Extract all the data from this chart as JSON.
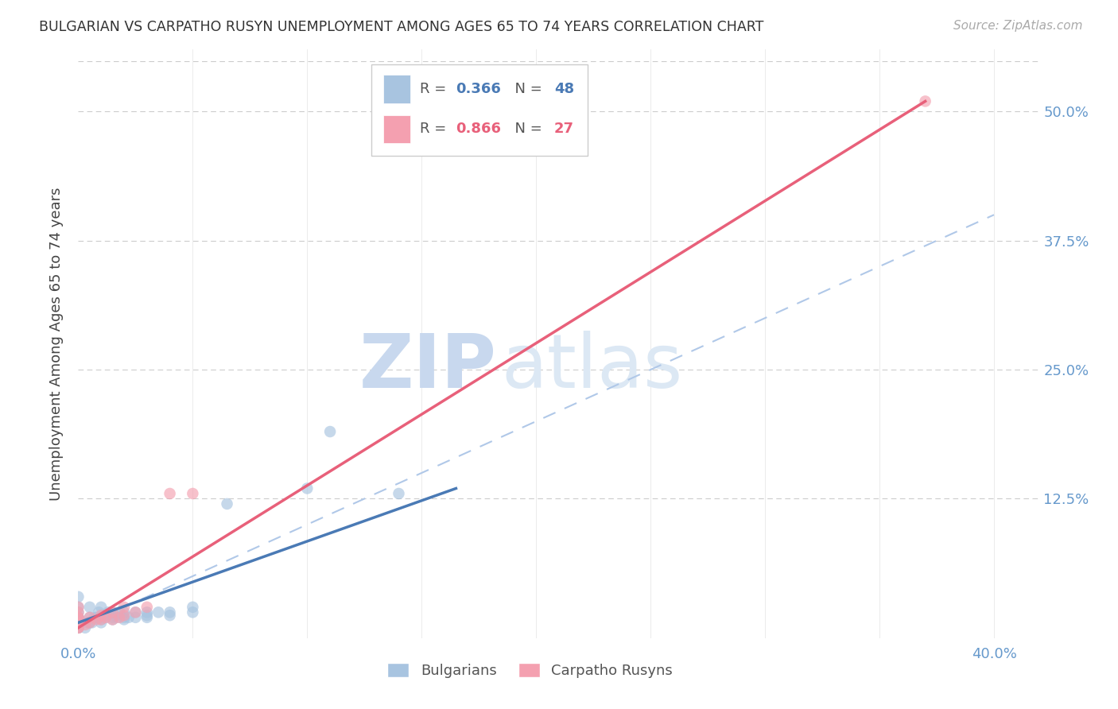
{
  "title": "BULGARIAN VS CARPATHO RUSYN UNEMPLOYMENT AMONG AGES 65 TO 74 YEARS CORRELATION CHART",
  "source": "Source: ZipAtlas.com",
  "ylabel": "Unemployment Among Ages 65 to 74 years",
  "xlim": [
    0.0,
    0.42
  ],
  "ylim": [
    -0.01,
    0.56
  ],
  "x_ticks": [
    0.0,
    0.05,
    0.1,
    0.15,
    0.2,
    0.25,
    0.3,
    0.35,
    0.4
  ],
  "y_ticks": [
    0.0,
    0.125,
    0.25,
    0.375,
    0.5
  ],
  "bulgarians_color": "#a8c4e0",
  "carpatho_color": "#f4a0b0",
  "bulgarian_line_color": "#4a7ab5",
  "carpatho_line_color": "#e8607a",
  "diagonal_color": "#b0c8e8",
  "legend_bulgarian_R": "0.366",
  "legend_bulgarian_N": "48",
  "legend_carpatho_R": "0.866",
  "legend_carpatho_N": "27",
  "watermark_zip": "ZIP",
  "watermark_atlas": "atlas",
  "watermark_color": "#c8d8ee",
  "background_color": "#ffffff",
  "bulgarian_line": [
    [
      0.0,
      0.005
    ],
    [
      0.165,
      0.135
    ]
  ],
  "carpatho_line": [
    [
      0.0,
      0.0
    ],
    [
      0.37,
      0.51
    ]
  ],
  "diagonal_line": [
    [
      0.0,
      0.0
    ],
    [
      0.4,
      0.4
    ]
  ],
  "bulgarians_x": [
    0.0,
    0.0,
    0.0,
    0.0,
    0.0,
    0.0,
    0.0,
    0.0,
    0.0,
    0.0,
    0.003,
    0.004,
    0.005,
    0.005,
    0.005,
    0.006,
    0.007,
    0.008,
    0.009,
    0.01,
    0.01,
    0.01,
    0.01,
    0.012,
    0.013,
    0.015,
    0.015,
    0.015,
    0.017,
    0.018,
    0.02,
    0.02,
    0.02,
    0.022,
    0.025,
    0.025,
    0.03,
    0.03,
    0.03,
    0.035,
    0.04,
    0.04,
    0.05,
    0.05,
    0.065,
    0.1,
    0.11,
    0.14
  ],
  "bulgarians_y": [
    0.0,
    0.0,
    0.005,
    0.005,
    0.01,
    0.01,
    0.01,
    0.015,
    0.02,
    0.03,
    0.0,
    0.005,
    0.005,
    0.01,
    0.02,
    0.005,
    0.01,
    0.01,
    0.015,
    0.005,
    0.008,
    0.01,
    0.02,
    0.01,
    0.015,
    0.008,
    0.01,
    0.015,
    0.01,
    0.015,
    0.008,
    0.01,
    0.015,
    0.01,
    0.01,
    0.015,
    0.01,
    0.012,
    0.015,
    0.015,
    0.012,
    0.015,
    0.015,
    0.02,
    0.12,
    0.135,
    0.19,
    0.13
  ],
  "carpatho_x": [
    0.0,
    0.0,
    0.0,
    0.0,
    0.0,
    0.0,
    0.0,
    0.0,
    0.0,
    0.0,
    0.003,
    0.005,
    0.005,
    0.008,
    0.01,
    0.01,
    0.012,
    0.015,
    0.015,
    0.018,
    0.02,
    0.02,
    0.025,
    0.03,
    0.04,
    0.05,
    0.37
  ],
  "carpatho_y": [
    0.0,
    0.0,
    0.003,
    0.005,
    0.005,
    0.008,
    0.01,
    0.01,
    0.015,
    0.02,
    0.003,
    0.005,
    0.01,
    0.008,
    0.008,
    0.012,
    0.01,
    0.008,
    0.015,
    0.01,
    0.012,
    0.02,
    0.015,
    0.02,
    0.13,
    0.13,
    0.51
  ]
}
